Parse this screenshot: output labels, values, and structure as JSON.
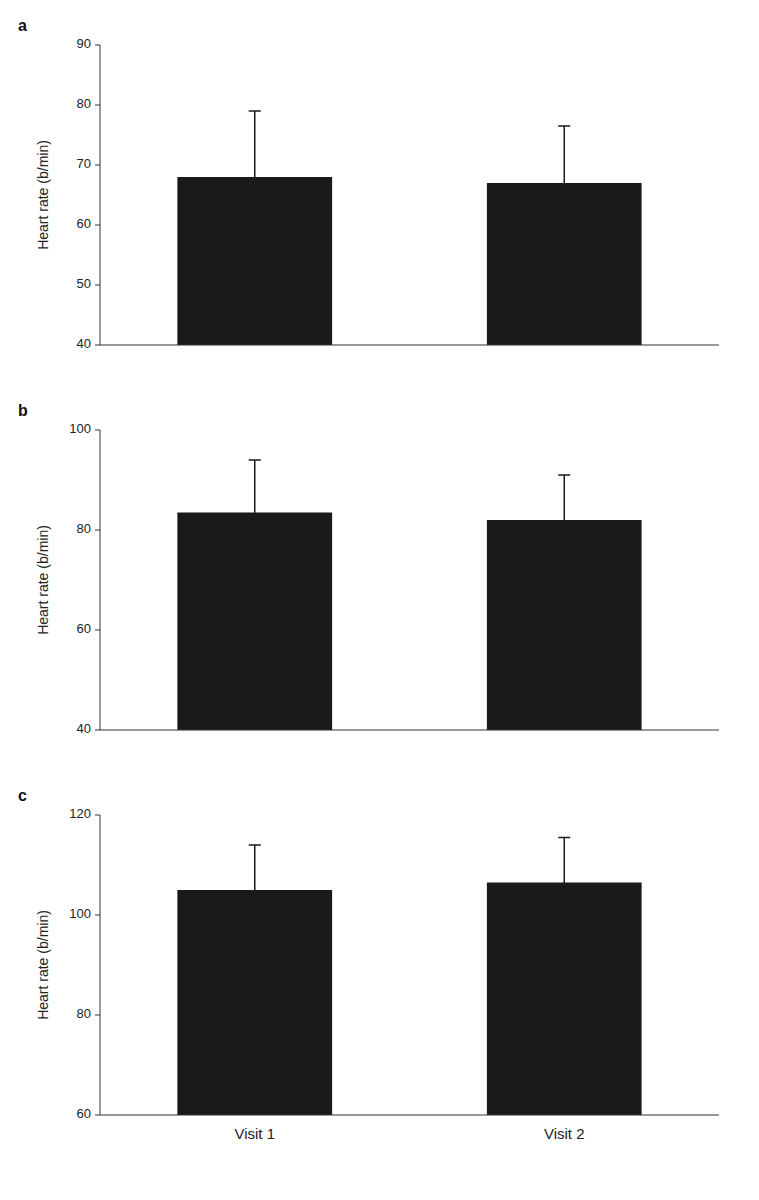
{
  "chart_data": [
    {
      "type": "bar",
      "title": "a",
      "ylabel": "Heart rate (b/min)",
      "categories": [
        "Visit 1",
        "Visit 2"
      ],
      "values": [
        68.0,
        67.0
      ],
      "error_up": [
        11.0,
        9.5
      ],
      "error_down": [
        1.5,
        1.5
      ],
      "color": "#1a1a1a",
      "ylim": [
        40,
        90
      ],
      "yticks": [
        40,
        50,
        60,
        70,
        80,
        90
      ],
      "grid": false,
      "tick_labels": "y"
    },
    {
      "type": "bar",
      "title": "b",
      "ylabel": "Heart rate (b/min)",
      "categories": [
        "Visit 1",
        "Visit 2"
      ],
      "values": [
        83.5,
        82.0
      ],
      "error_up": [
        10.5,
        9.0
      ],
      "error_down": [
        2.0,
        2.0
      ],
      "color": "#1a1a1a",
      "ylim": [
        40,
        100
      ],
      "yticks": [
        40,
        60,
        80,
        100
      ],
      "grid": false,
      "tick_labels": "y"
    },
    {
      "type": "bar",
      "title": "c",
      "ylabel": "Heart rate (b/min)",
      "categories": [
        "Visit 1",
        "Visit 2"
      ],
      "values": [
        105.0,
        106.5
      ],
      "error_up": [
        9.0,
        9.0
      ],
      "error_down": [
        2.5,
        2.5
      ],
      "color": "#1a1a1a",
      "ylim": [
        60,
        120
      ],
      "yticks": [
        60,
        80,
        100,
        120
      ],
      "grid": false,
      "tick_labels": true
    }
  ]
}
